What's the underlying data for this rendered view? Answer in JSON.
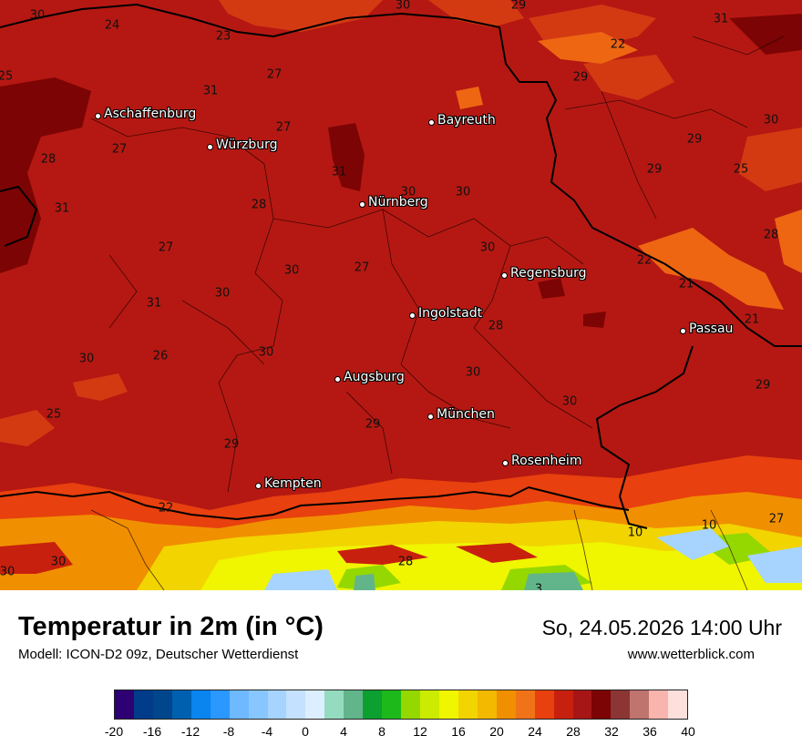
{
  "header": {
    "title": "Temperatur in 2m (in °C)",
    "subtitle": "Modell: ICON-D2 09z, Deutscher Wetterdienst",
    "datetime": "So, 24.05.2026 14:00 Uhr",
    "website": "www.wetterblick.com"
  },
  "cities": [
    {
      "name": "Aschaffenburg"
    },
    {
      "name": "Würzburg"
    },
    {
      "name": "Bayreuth"
    },
    {
      "name": "Nürnberg"
    },
    {
      "name": "Regensburg"
    },
    {
      "name": "Ingolstadt"
    },
    {
      "name": "Passau"
    },
    {
      "name": "Augsburg"
    },
    {
      "name": "München"
    },
    {
      "name": "Rosenheim"
    },
    {
      "name": "Kempten"
    }
  ],
  "map_values": [
    "30",
    "24",
    "23",
    "30",
    "29",
    "31",
    "22",
    "25",
    "27",
    "31",
    "29",
    "30",
    "27",
    "29",
    "27",
    "30",
    "25",
    "28",
    "31",
    "29",
    "31",
    "28",
    "30",
    "30",
    "28",
    "27",
    "30",
    "30",
    "22",
    "27",
    "21",
    "31",
    "26",
    "30",
    "21",
    "28",
    "30",
    "30",
    "29",
    "30",
    "25",
    "30",
    "29",
    "29",
    "22",
    "10",
    "10",
    "27",
    "30",
    "28",
    "30",
    "3"
  ],
  "legend": {
    "colors": [
      "#2d0073",
      "#003c8a",
      "#00468c",
      "#0060b0",
      "#0a84ee",
      "#2a98ff",
      "#6eb9ff",
      "#88c6ff",
      "#a6d4ff",
      "#c4e2ff",
      "#dceeff",
      "#95dbbf",
      "#62b58a",
      "#0ca030",
      "#1db91a",
      "#95d800",
      "#cbeb00",
      "#f0f500",
      "#f2d400",
      "#f3b900",
      "#f09000",
      "#f07318",
      "#e8400e",
      "#c8200e",
      "#a71616",
      "#7c0404",
      "#8b3634",
      "#c0746e",
      "#f9b4ae",
      "#fde0dc"
    ],
    "ticks": [
      "-20",
      "-16",
      "-12",
      "-8",
      "-4",
      "0",
      "4",
      "8",
      "12",
      "16",
      "20",
      "24",
      "28",
      "32",
      "36",
      "40"
    ]
  }
}
